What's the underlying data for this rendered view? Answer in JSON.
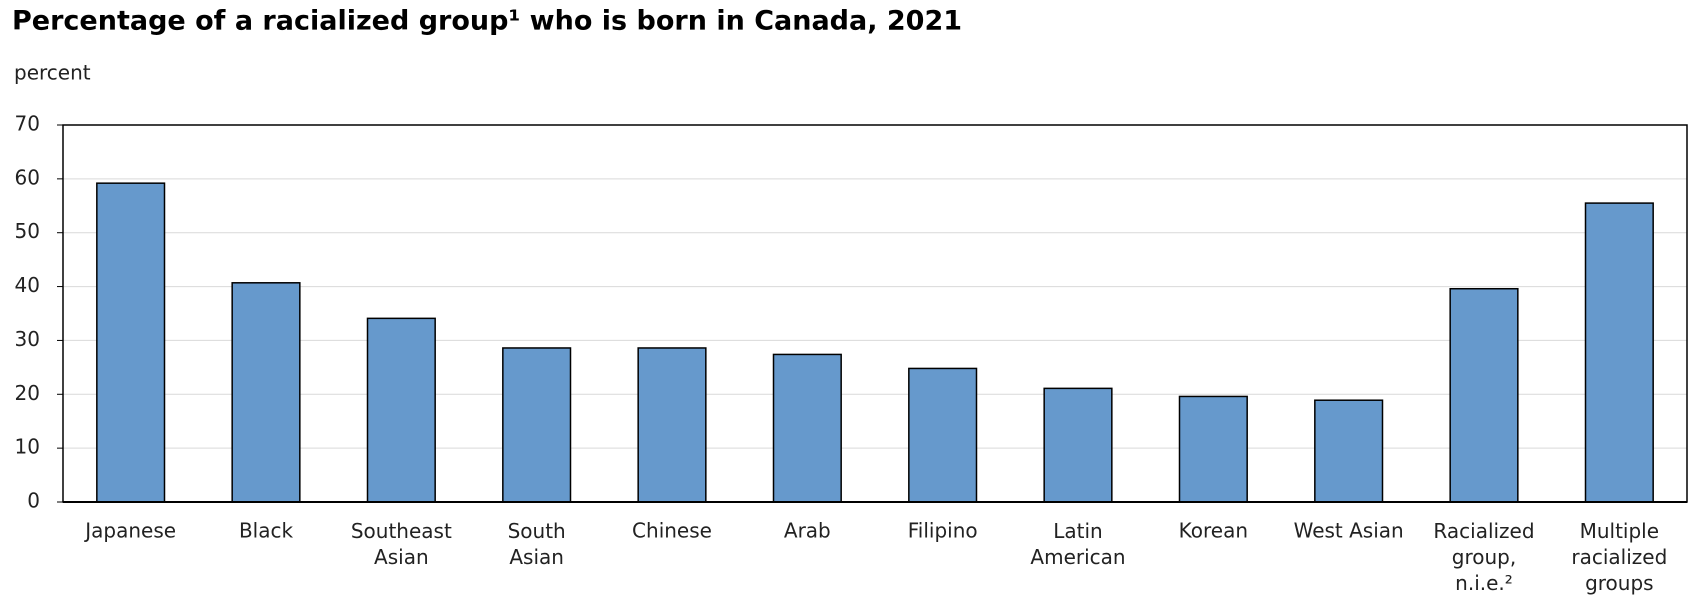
{
  "chart_data": {
    "type": "bar",
    "title": "Percentage of a racialized group¹ who is born in Canada, 2021",
    "y_label": "percent",
    "categories": [
      "Japanese",
      "Black",
      "Southeast\nAsian",
      "South\nAsian",
      "Chinese",
      "Arab",
      "Filipino",
      "Latin\nAmerican",
      "Korean",
      "West Asian",
      "Racialized\ngroup,\nn.i.e.²",
      "Multiple\nracialized\ngroups"
    ],
    "values": [
      59.2,
      40.7,
      34.1,
      28.6,
      28.6,
      27.4,
      24.8,
      21.1,
      19.6,
      18.9,
      39.6,
      55.5
    ],
    "color": "#6699cc",
    "ylim": [
      0,
      70
    ],
    "yticks": [
      0,
      10,
      20,
      30,
      40,
      50,
      60,
      70
    ],
    "grid": true
  }
}
